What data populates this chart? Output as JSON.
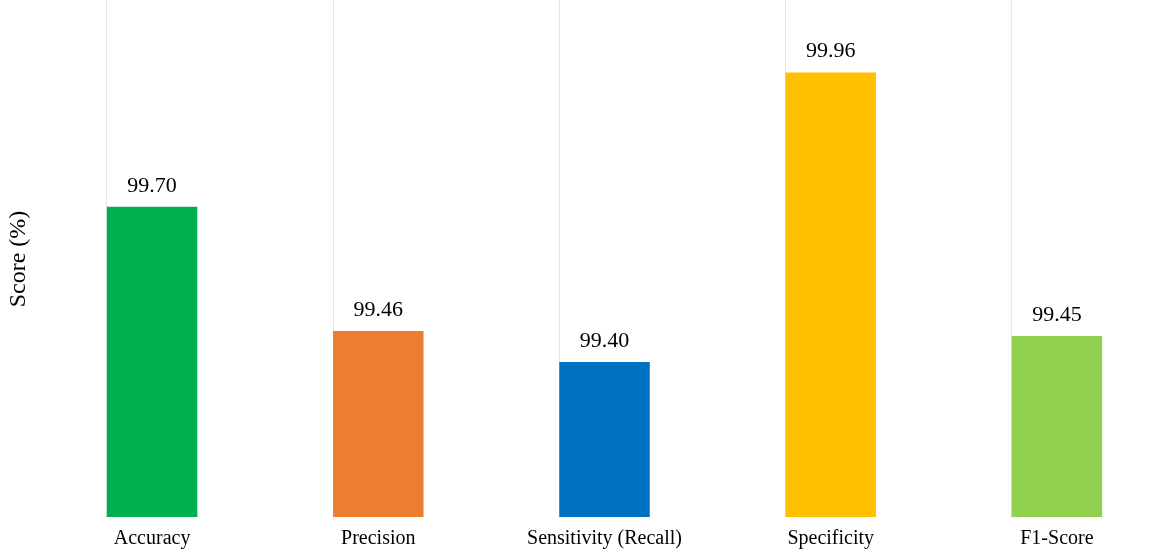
{
  "chart_data": {
    "type": "bar",
    "ylabel": "Score (%)",
    "categories": [
      "Accuracy",
      "Precision",
      "Sensitivity (Recall)",
      "Specificity",
      "F1-Score"
    ],
    "values": [
      99.7,
      99.46,
      99.4,
      99.96,
      99.45
    ],
    "colors": [
      "#00b050",
      "#ed7d31",
      "#0070c0",
      "#ffc000",
      "#92d050"
    ],
    "value_labels": [
      "99.70",
      "99.46",
      "99.40",
      "99.96",
      "99.45"
    ],
    "ylim": [
      99.1,
      100.1
    ],
    "grid": "x",
    "tick_labels": "x"
  }
}
